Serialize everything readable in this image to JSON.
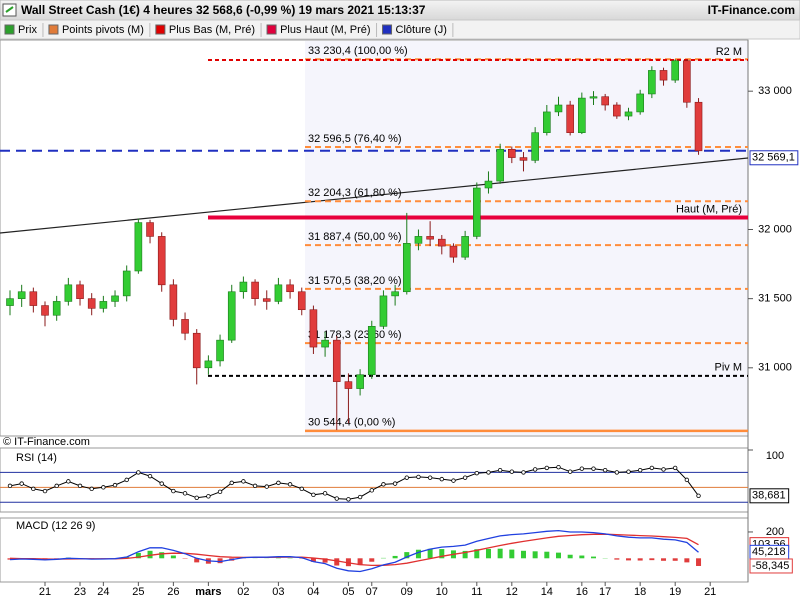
{
  "chart_data": [
    {
      "type": "candlestick",
      "title": "Wall Street Cash (1€) 4 heures 32 568,6 (-0,99 %) 19 mars 2021 15:13:37",
      "site": "IT-Finance.com",
      "watermark": "© IT-Finance.com",
      "legend": [
        {
          "name": "Prix",
          "color": "#2ca02c"
        },
        {
          "name": "Points pivots (M)",
          "color": "#e07b39"
        },
        {
          "name": "Plus Bas (M, Pré)",
          "color": "#e00000"
        },
        {
          "name": "Plus Haut (M, Pré)",
          "color": "#e0003c"
        },
        {
          "name": "Clôture (J)",
          "color": "#2030c0"
        }
      ],
      "categories": [
        null,
        null,
        null,
        "21",
        null,
        null,
        "23",
        null,
        "24",
        null,
        null,
        "25",
        null,
        null,
        "26",
        null,
        null,
        "mars",
        null,
        null,
        "02",
        null,
        null,
        "03",
        null,
        null,
        "04",
        null,
        null,
        "05",
        null,
        "07",
        null,
        null,
        "09",
        null,
        null,
        "10",
        null,
        null,
        "11",
        null,
        null,
        "12",
        null,
        null,
        "14",
        null,
        null,
        "16",
        null,
        "17",
        null,
        null,
        "18",
        null,
        null,
        "19",
        null,
        null,
        "21"
      ],
      "ohlc": [
        [
          31450,
          31560,
          31380,
          31500
        ],
        [
          31500,
          31600,
          31440,
          31550
        ],
        [
          31550,
          31580,
          31400,
          31450
        ],
        [
          31450,
          31480,
          31300,
          31380
        ],
        [
          31380,
          31520,
          31340,
          31480
        ],
        [
          31480,
          31650,
          31450,
          31600
        ],
        [
          31600,
          31630,
          31450,
          31500
        ],
        [
          31500,
          31540,
          31380,
          31430
        ],
        [
          31430,
          31520,
          31400,
          31480
        ],
        [
          31480,
          31560,
          31440,
          31520
        ],
        [
          31520,
          31740,
          31480,
          31700
        ],
        [
          31700,
          32080,
          31680,
          32050
        ],
        [
          32050,
          32070,
          31900,
          31950
        ],
        [
          31950,
          31980,
          31550,
          31600
        ],
        [
          31600,
          31640,
          31300,
          31350
        ],
        [
          31350,
          31400,
          31200,
          31250
        ],
        [
          31250,
          31280,
          30880,
          31000
        ],
        [
          31000,
          31090,
          30950,
          31050
        ],
        [
          31050,
          31240,
          31010,
          31200
        ],
        [
          31200,
          31600,
          31180,
          31550
        ],
        [
          31550,
          31660,
          31500,
          31620
        ],
        [
          31620,
          31640,
          31450,
          31500
        ],
        [
          31500,
          31560,
          31420,
          31480
        ],
        [
          31480,
          31650,
          31460,
          31600
        ],
        [
          31600,
          31640,
          31500,
          31550
        ],
        [
          31550,
          31580,
          31380,
          31420
        ],
        [
          31420,
          31450,
          31100,
          31150
        ],
        [
          31150,
          31260,
          31080,
          31200
        ],
        [
          31200,
          31230,
          30550,
          30900
        ],
        [
          30900,
          30960,
          30600,
          30850
        ],
        [
          30850,
          30990,
          30800,
          30950
        ],
        [
          30950,
          31340,
          30920,
          31300
        ],
        [
          31300,
          31560,
          31280,
          31520
        ],
        [
          31520,
          31600,
          31450,
          31550
        ],
        [
          31550,
          32120,
          31530,
          31900
        ],
        [
          31900,
          32000,
          31850,
          31950
        ],
        [
          31950,
          32060,
          31880,
          31930
        ],
        [
          31930,
          31960,
          31820,
          31880
        ],
        [
          31880,
          31900,
          31760,
          31800
        ],
        [
          31800,
          31990,
          31780,
          31950
        ],
        [
          31950,
          32340,
          31930,
          32300
        ],
        [
          32300,
          32420,
          32260,
          32350
        ],
        [
          32350,
          32620,
          32330,
          32580
        ],
        [
          32580,
          32600,
          32480,
          32520
        ],
        [
          32520,
          32560,
          32420,
          32500
        ],
        [
          32500,
          32740,
          32480,
          32700
        ],
        [
          32700,
          32900,
          32680,
          32850
        ],
        [
          32850,
          32960,
          32820,
          32900
        ],
        [
          32900,
          32930,
          32680,
          32700
        ],
        [
          32700,
          32990,
          32690,
          32950
        ],
        [
          32950,
          33000,
          32900,
          32960
        ],
        [
          32960,
          32980,
          32860,
          32900
        ],
        [
          32900,
          32920,
          32800,
          32820
        ],
        [
          32820,
          32880,
          32790,
          32850
        ],
        [
          32850,
          33010,
          32830,
          32980
        ],
        [
          32980,
          33180,
          32950,
          33150
        ],
        [
          33150,
          33170,
          33040,
          33080
        ],
        [
          33080,
          33230,
          33060,
          33220
        ],
        [
          33220,
          33230,
          32880,
          32920
        ],
        [
          32920,
          32950,
          32540,
          32569
        ],
        null
      ],
      "up_color": "#33cc33",
      "down_color": "#e03c3c",
      "ylim": [
        30507,
        33370
      ],
      "yticks": [
        {
          "value": 31000,
          "label": "31 000"
        },
        {
          "value": 31500,
          "label": "31 500"
        },
        {
          "value": 32000,
          "label": "32 000"
        },
        {
          "value": 33000,
          "label": "33 000"
        }
      ],
      "fibonacci": [
        {
          "value": 33230.4,
          "label": "33 230,4 (100,00 %)"
        },
        {
          "value": 32596.5,
          "label": "32 596,5 (76,40 %)"
        },
        {
          "value": 32204.3,
          "label": "32 204,3 (61,80 %)"
        },
        {
          "value": 31887.4,
          "label": "31 887,4 (50,00 %)"
        },
        {
          "value": 31570.5,
          "label": "31 570,5 (38,20 %)"
        },
        {
          "value": 31178.3,
          "label": "31 178,3 (23,60 %)"
        },
        {
          "value": 30544.4,
          "label": "30 544,4 (0,00 %)"
        }
      ],
      "fib_color": "#ff8c3a",
      "pivots": [
        {
          "name": "R2 M",
          "value": 33225,
          "color": "#e00000"
        },
        {
          "name": "Haut (M, Pré)",
          "value": 32087,
          "color": "#e8003c"
        },
        {
          "name": "Piv M",
          "value": 30942,
          "color": "#000000"
        }
      ],
      "close_line": {
        "value": 32569.1,
        "label": "32 569,1",
        "color": "#2030c0"
      }
    },
    {
      "type": "line",
      "title": "RSI (14)",
      "values": [
        52,
        55,
        48,
        45,
        52,
        58,
        52,
        48,
        50,
        53,
        60,
        70,
        65,
        55,
        45,
        42,
        36,
        38,
        44,
        56,
        58,
        52,
        51,
        56,
        54,
        48,
        40,
        42,
        35,
        34,
        37,
        46,
        54,
        55,
        63,
        64,
        63,
        61,
        59,
        63,
        69,
        70,
        73,
        71,
        70,
        74,
        76,
        77,
        71,
        75,
        75,
        73,
        70,
        71,
        73,
        76,
        74,
        76,
        60,
        38.681,
        null
      ],
      "value_labels": [
        null,
        null,
        null,
        null,
        null,
        null,
        null,
        null,
        null,
        null,
        null,
        null,
        null,
        null,
        null,
        null,
        null,
        null,
        null,
        null,
        null,
        null,
        null,
        null,
        null,
        null,
        null,
        null,
        null,
        null,
        null,
        null,
        null,
        null,
        null,
        null,
        null,
        null,
        null,
        null,
        null,
        null,
        null,
        null,
        null,
        null,
        null,
        null,
        null,
        null,
        null,
        null,
        null,
        null,
        null,
        null,
        null,
        null,
        null,
        "38,681",
        null
      ],
      "color": "#000000",
      "ylim": [
        17,
        100
      ],
      "yticks": [
        100
      ],
      "levels": [
        {
          "value": 70,
          "color": "#2030a0"
        },
        {
          "value": 50,
          "color": "#e07b39"
        },
        {
          "value": 30,
          "color": "#2030a0"
        }
      ]
    },
    {
      "type": "macd",
      "title": "MACD (12 26 9)",
      "macd": {
        "color": "#2040e0",
        "values": [
          -10,
          -5,
          -8,
          -12,
          -8,
          0,
          -2,
          -6,
          -5,
          -3,
          10,
          50,
          80,
          80,
          60,
          35,
          0,
          -20,
          -25,
          -10,
          5,
          8,
          8,
          12,
          12,
          5,
          -25,
          -40,
          -75,
          -95,
          -100,
          -80,
          -50,
          -30,
          10,
          45,
          70,
          85,
          90,
          100,
          130,
          150,
          170,
          180,
          185,
          195,
          205,
          210,
          200,
          200,
          195,
          185,
          170,
          160,
          155,
          155,
          145,
          140,
          120,
          45.218,
          null
        ],
        "value_labels": [
          null,
          null,
          null,
          null,
          null,
          null,
          null,
          null,
          null,
          null,
          null,
          null,
          null,
          null,
          null,
          null,
          null,
          null,
          null,
          null,
          null,
          null,
          null,
          null,
          null,
          null,
          null,
          null,
          null,
          null,
          null,
          null,
          null,
          null,
          null,
          null,
          null,
          null,
          null,
          null,
          null,
          null,
          null,
          null,
          null,
          null,
          null,
          null,
          null,
          null,
          null,
          null,
          null,
          null,
          null,
          null,
          null,
          null,
          null,
          "45,218",
          null
        ]
      },
      "signal": {
        "color": "#e03030",
        "values": [
          0,
          -2,
          -3,
          -5,
          -6,
          -5,
          -4,
          -4,
          -4,
          -4,
          -1,
          9,
          23,
          34,
          39,
          38,
          31,
          21,
          12,
          8,
          7,
          7,
          7,
          8,
          9,
          8,
          2,
          -7,
          -20,
          -35,
          -48,
          -54,
          -53,
          -48,
          -37,
          -20,
          -2,
          15,
          30,
          44,
          61,
          79,
          97,
          114,
          128,
          142,
          155,
          167,
          173,
          179,
          182,
          183,
          180,
          176,
          172,
          169,
          164,
          159,
          151,
          103.563,
          null
        ],
        "value_labels": [
          null,
          null,
          null,
          null,
          null,
          null,
          null,
          null,
          null,
          null,
          null,
          null,
          null,
          null,
          null,
          null,
          null,
          null,
          null,
          null,
          null,
          null,
          null,
          null,
          null,
          null,
          null,
          null,
          null,
          null,
          null,
          null,
          null,
          null,
          null,
          null,
          null,
          null,
          null,
          null,
          null,
          null,
          null,
          null,
          null,
          null,
          null,
          null,
          null,
          null,
          null,
          null,
          null,
          null,
          null,
          null,
          null,
          null,
          null,
          "103,56",
          null
        ]
      },
      "histogram": {
        "up_color": "#33cc33",
        "down_color": "#e03c3c",
        "values": [
          -10,
          -3,
          -5,
          -7,
          -2,
          5,
          2,
          -2,
          -1,
          1,
          11,
          41,
          57,
          46,
          21,
          -3,
          -31,
          -41,
          -37,
          -18,
          -2,
          1,
          1,
          4,
          3,
          -3,
          -27,
          -33,
          -55,
          -60,
          -52,
          -26,
          3,
          18,
          47,
          65,
          72,
          70,
          60,
          56,
          69,
          71,
          73,
          66,
          57,
          53,
          50,
          43,
          27,
          21,
          13,
          2,
          -10,
          -16,
          -17,
          -14,
          -19,
          -19,
          -31,
          -58.345,
          null
        ],
        "value_labels": [
          null,
          null,
          null,
          null,
          null,
          null,
          null,
          null,
          null,
          null,
          null,
          null,
          null,
          null,
          null,
          null,
          null,
          null,
          null,
          null,
          null,
          null,
          null,
          null,
          null,
          null,
          null,
          null,
          null,
          null,
          null,
          null,
          null,
          null,
          null,
          null,
          null,
          null,
          null,
          null,
          null,
          null,
          null,
          null,
          null,
          null,
          null,
          null,
          null,
          null,
          null,
          null,
          null,
          null,
          null,
          null,
          null,
          null,
          null,
          "-58,345",
          null
        ]
      },
      "ylim": [
        -180,
        306
      ],
      "yticks": [
        200
      ]
    }
  ]
}
